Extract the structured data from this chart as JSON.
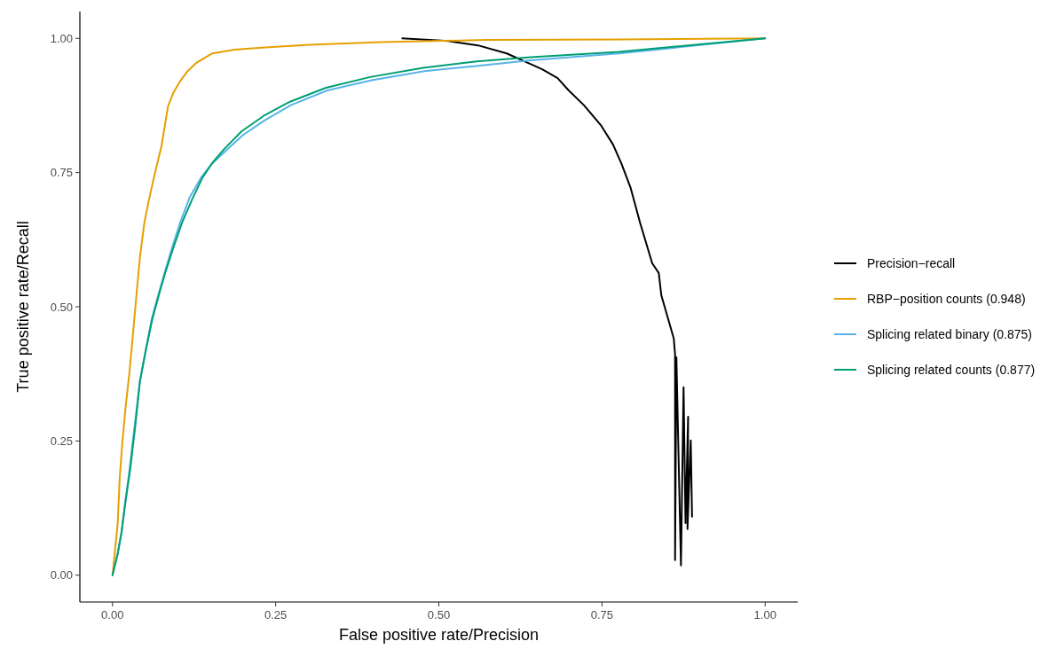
{
  "chart_data": {
    "type": "line",
    "xlabel": "False positive rate/Precision",
    "ylabel": "True positive rate/Recall",
    "xlim": [
      -0.05,
      1.05
    ],
    "ylim": [
      -0.05,
      1.05
    ],
    "xticks": [
      {
        "value": 0,
        "label": "0.00"
      },
      {
        "value": 0.25,
        "label": "0.25"
      },
      {
        "value": 0.5,
        "label": "0.50"
      },
      {
        "value": 0.75,
        "label": "0.75"
      },
      {
        "value": 1,
        "label": "1.00"
      }
    ],
    "yticks": [
      {
        "value": 0,
        "label": "0.00"
      },
      {
        "value": 0.25,
        "label": "0.25"
      },
      {
        "value": 0.5,
        "label": "0.50"
      },
      {
        "value": 0.75,
        "label": "0.75"
      },
      {
        "value": 1,
        "label": "1.00"
      }
    ],
    "grid": false,
    "legend": "right",
    "marker": "none",
    "line_style": "solid",
    "series": [
      {
        "name": "Precision−recall",
        "color": "#000000",
        "x": [
          0.444,
          0.515,
          0.56,
          0.604,
          0.641,
          0.659,
          0.682,
          0.699,
          0.722,
          0.749,
          0.767,
          0.78,
          0.794,
          0.808,
          0.827,
          0.837,
          0.841,
          0.86,
          0.862,
          0.862,
          0.864,
          0.871,
          0.875,
          0.878,
          0.882,
          0.881,
          0.886,
          0.888
        ],
        "values": [
          1.0,
          0.995,
          0.987,
          0.972,
          0.952,
          0.942,
          0.926,
          0.903,
          0.876,
          0.837,
          0.802,
          0.766,
          0.721,
          0.658,
          0.581,
          0.563,
          0.521,
          0.441,
          0.411,
          0.028,
          0.406,
          0.018,
          0.35,
          0.097,
          0.295,
          0.086,
          0.251,
          0.109
        ]
      },
      {
        "name": "RBP−position counts (0.948)",
        "color": "#e69f00",
        "x": [
          0,
          0.004,
          0.008,
          0.011,
          0.015,
          0.02,
          0.026,
          0.031,
          0.037,
          0.042,
          0.049,
          0.056,
          0.065,
          0.075,
          0.085,
          0.093,
          0.103,
          0.115,
          0.129,
          0.153,
          0.187,
          0.234,
          0.302,
          0.411,
          0.573,
          0.776,
          1
        ],
        "values": [
          0,
          0.048,
          0.097,
          0.18,
          0.246,
          0.312,
          0.378,
          0.444,
          0.526,
          0.592,
          0.658,
          0.7,
          0.749,
          0.799,
          0.873,
          0.898,
          0.919,
          0.939,
          0.955,
          0.972,
          0.979,
          0.983,
          0.988,
          0.993,
          0.997,
          0.998,
          1
        ]
      },
      {
        "name": "Splicing related binary (0.875)",
        "color": "#56b4e9",
        "x": [
          0,
          0.008,
          0.014,
          0.019,
          0.026,
          0.034,
          0.042,
          0.051,
          0.06,
          0.071,
          0.081,
          0.091,
          0.104,
          0.118,
          0.136,
          0.152,
          0.173,
          0.2,
          0.234,
          0.274,
          0.329,
          0.397,
          0.478,
          0.56,
          0.641,
          0.776,
          1
        ],
        "values": [
          0,
          0.04,
          0.081,
          0.13,
          0.196,
          0.279,
          0.361,
          0.419,
          0.477,
          0.526,
          0.568,
          0.609,
          0.658,
          0.703,
          0.741,
          0.766,
          0.79,
          0.82,
          0.848,
          0.876,
          0.903,
          0.922,
          0.939,
          0.949,
          0.959,
          0.972,
          1
        ]
      },
      {
        "name": "Splicing related counts (0.877)",
        "color": "#009e73",
        "x": [
          0,
          0.008,
          0.014,
          0.019,
          0.027,
          0.035,
          0.042,
          0.051,
          0.061,
          0.072,
          0.082,
          0.093,
          0.107,
          0.122,
          0.138,
          0.153,
          0.172,
          0.198,
          0.232,
          0.272,
          0.327,
          0.395,
          0.476,
          0.558,
          0.641,
          0.776,
          1
        ],
        "values": [
          0,
          0.04,
          0.081,
          0.13,
          0.196,
          0.279,
          0.361,
          0.419,
          0.477,
          0.526,
          0.568,
          0.609,
          0.658,
          0.7,
          0.741,
          0.768,
          0.795,
          0.827,
          0.856,
          0.882,
          0.908,
          0.928,
          0.945,
          0.957,
          0.965,
          0.975,
          1
        ]
      }
    ]
  }
}
